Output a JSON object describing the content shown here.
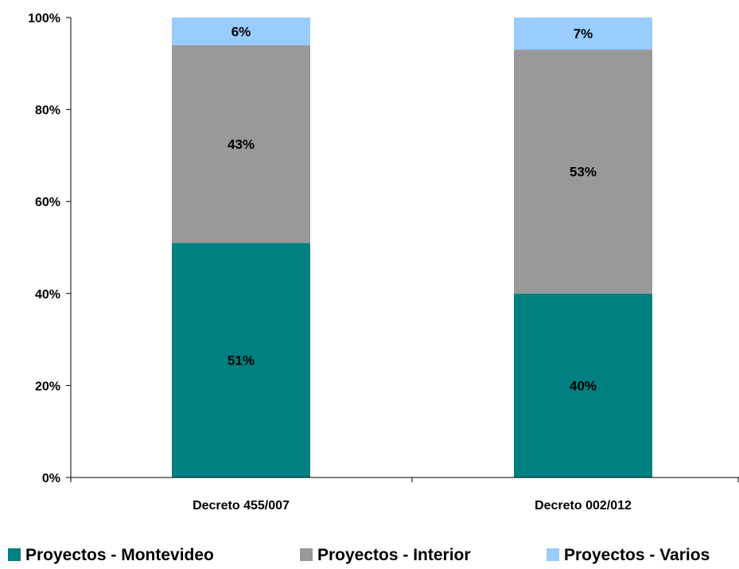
{
  "chart_data": {
    "type": "bar",
    "stacked": true,
    "percent_stacked": true,
    "categories": [
      "Decreto 455/007",
      "Decreto 002/012"
    ],
    "series": [
      {
        "name": "Proyectos - Montevideo",
        "values": [
          51,
          40
        ],
        "labels": [
          "51%",
          "40%"
        ],
        "color": "#008080"
      },
      {
        "name": "Proyectos - Interior",
        "values": [
          43,
          53
        ],
        "labels": [
          "43%",
          "53%"
        ],
        "color": "#999999"
      },
      {
        "name": "Proyectos - Varios",
        "values": [
          6,
          7
        ],
        "labels": [
          "6%",
          "7%"
        ],
        "color": "#99ccff"
      }
    ],
    "title": "",
    "xlabel": "",
    "ylabel": "",
    "ylim": [
      0,
      100
    ],
    "yticks": [
      "0%",
      "20%",
      "40%",
      "60%",
      "80%",
      "100%"
    ],
    "grid": false,
    "legend_position": "bottom"
  }
}
